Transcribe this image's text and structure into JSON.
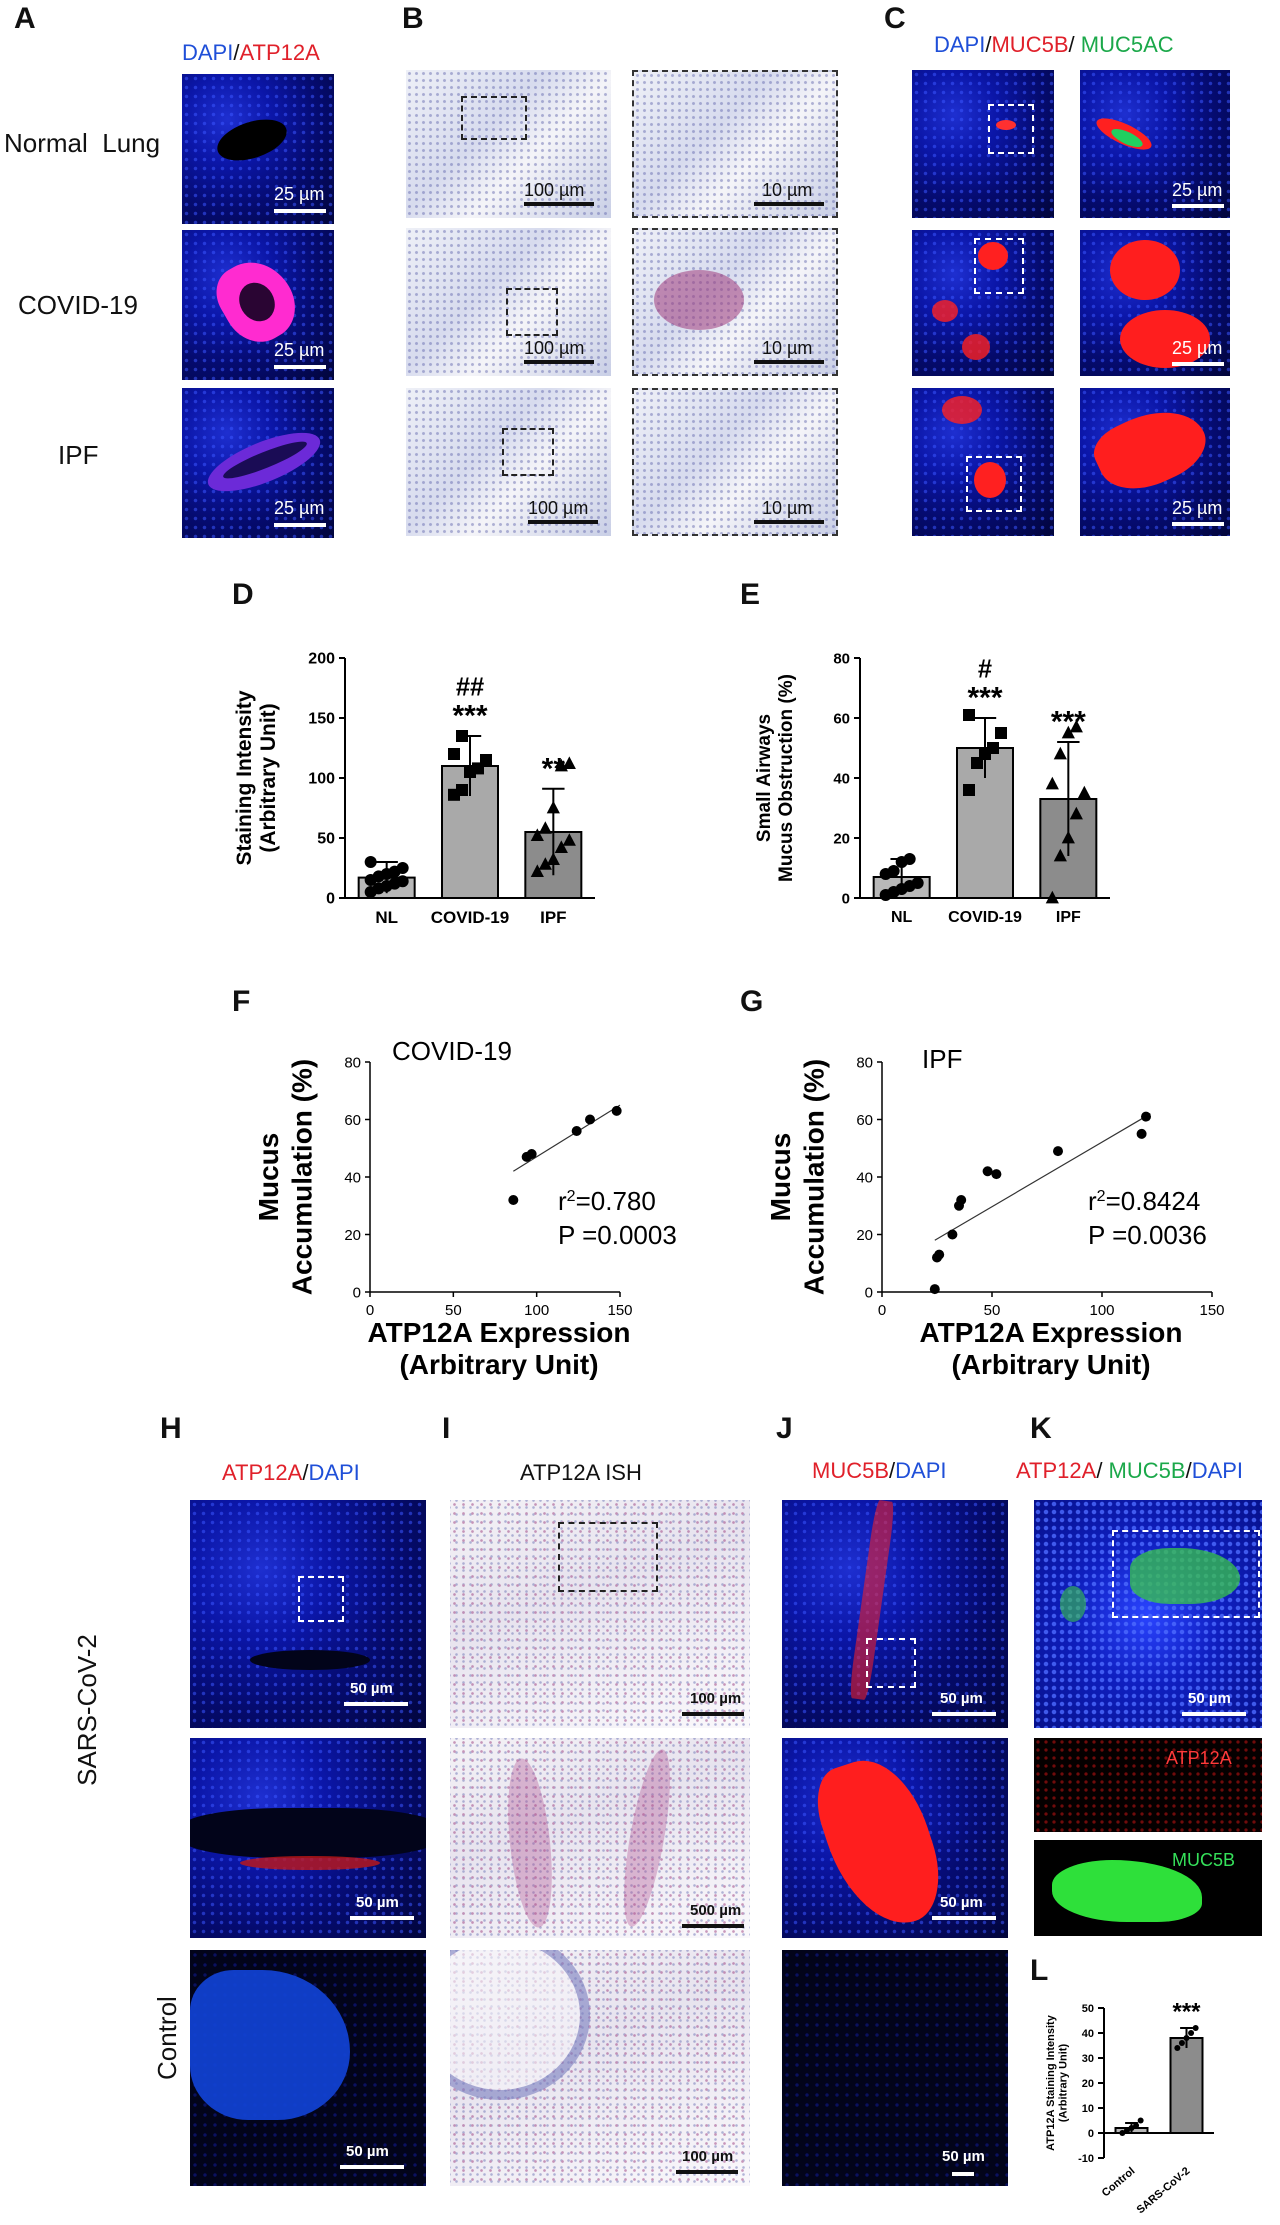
{
  "panel_labels": {
    "A": "A",
    "B": "B",
    "C": "C",
    "D": "D",
    "E": "E",
    "F": "F",
    "G": "G",
    "H": "H",
    "I": "I",
    "J": "J",
    "K": "K",
    "L": "L"
  },
  "panelA": {
    "header_dapi": "DAPI",
    "header_sep": "/",
    "header_atp": "ATP12A",
    "rows": [
      "Normal  Lung",
      "COVID-19",
      "IPF"
    ],
    "scale": "25 µm"
  },
  "panelB": {
    "scale_left": "100 µm",
    "scale_right": "10 µm"
  },
  "panelC": {
    "header_dapi": "DAPI",
    "sep1": "/",
    "header_muc5b": "MUC5B",
    "sep2": "/",
    "header_muc5ac": " MUC5AC",
    "scale": "25 µm"
  },
  "panelH": {
    "header_atp": "ATP12A",
    "sep": "/",
    "header_dapi": "DAPI",
    "row_sars": "SARS-CoV-2",
    "row_control": "Control",
    "scale": "50 µm"
  },
  "panelI": {
    "header": "ATP12A ISH",
    "scale1": "100 µm",
    "scale2": "500 µm",
    "scale3": "100 µm"
  },
  "panelJ": {
    "header_muc": "MUC5B",
    "sep": "/",
    "header_dapi": "DAPI",
    "scale": "50 µm"
  },
  "panelK": {
    "header_atp": "ATP12A",
    "sep1": "/ ",
    "header_muc": "MUC5B",
    "sep2": "/",
    "header_dapi": "DAPI",
    "scale": "50 µm",
    "label_atp": "ATP12A",
    "label_muc": "MUC5B"
  },
  "chart_data": [
    {
      "id": "D",
      "type": "bar",
      "ylabel": "Staining Intensity\n(Arbitrary Unit)",
      "ylim": [
        0,
        200
      ],
      "yticks": [
        0,
        50,
        100,
        150,
        200
      ],
      "categories": [
        "NL",
        "COVID-19",
        "IPF"
      ],
      "values": [
        17,
        110,
        55
      ],
      "errors": [
        13,
        25,
        36
      ],
      "markers": [
        "circle",
        "square",
        "triangle"
      ],
      "points": [
        [
          5,
          8,
          10,
          12,
          14,
          15,
          18,
          20,
          22,
          25,
          30
        ],
        [
          86,
          90,
          105,
          108,
          115,
          120,
          135
        ],
        [
          22,
          28,
          32,
          42,
          48,
          52,
          58,
          75,
          110,
          112
        ]
      ],
      "annotations": [
        [
          "",
          ""
        ],
        [
          "##",
          "***"
        ],
        [
          "",
          "**"
        ]
      ],
      "bar_colors": [
        "#b8b8b8",
        "#a9a9a9",
        "#8c8c8c"
      ]
    },
    {
      "id": "E",
      "type": "bar",
      "ylabel": "Small Airways\nMucus Obstruction (%)",
      "ylim": [
        0,
        80
      ],
      "yticks": [
        0,
        20,
        40,
        60,
        80
      ],
      "categories": [
        "NL",
        "COVID-19",
        "IPF"
      ],
      "values": [
        7,
        50,
        33
      ],
      "errors": [
        6,
        10,
        19
      ],
      "markers": [
        "circle",
        "square",
        "triangle"
      ],
      "points": [
        [
          1,
          2,
          3,
          4,
          5,
          8,
          9,
          12,
          13
        ],
        [
          36,
          45,
          48,
          50,
          55,
          61
        ],
        [
          0,
          14,
          20,
          28,
          35,
          38,
          48,
          55,
          57
        ]
      ],
      "annotations": [
        [
          "",
          ""
        ],
        [
          "#",
          "***"
        ],
        [
          "",
          "***"
        ]
      ],
      "bar_colors": [
        "#b8b8b8",
        "#a9a9a9",
        "#8c8c8c"
      ]
    },
    {
      "id": "F",
      "type": "scatter",
      "title": "COVID-19",
      "xlabel": "ATP12A Expression\n(Arbitrary Unit)",
      "ylabel": "Mucus\nAccumulation (%)",
      "xlim": [
        0,
        150
      ],
      "ylim": [
        0,
        80
      ],
      "xticks": [
        0,
        50,
        100,
        150
      ],
      "yticks": [
        0,
        20,
        40,
        60,
        80
      ],
      "x": [
        86,
        94,
        97,
        124,
        132,
        148
      ],
      "y": [
        32,
        47,
        48,
        56,
        60,
        63
      ],
      "fit": [
        [
          86,
          42
        ],
        [
          150,
          65
        ]
      ],
      "stats": [
        "r2=0.780",
        "P =0.0003"
      ]
    },
    {
      "id": "G",
      "type": "scatter",
      "title": "IPF",
      "xlabel": "ATP12A Expression\n(Arbitrary Unit)",
      "ylabel": "Mucus\nAccumulation (%)",
      "xlim": [
        0,
        150
      ],
      "ylim": [
        0,
        80
      ],
      "xticks": [
        0,
        50,
        100,
        150
      ],
      "yticks": [
        0,
        20,
        40,
        60,
        80
      ],
      "x": [
        24,
        25,
        26,
        32,
        35,
        36,
        48,
        52,
        80,
        118,
        120
      ],
      "y": [
        1,
        12,
        13,
        20,
        30,
        32,
        42,
        41,
        49,
        55,
        61
      ],
      "fit": [
        [
          24,
          18
        ],
        [
          122,
          62
        ]
      ],
      "stats": [
        "r2=0.8424",
        "P =0.0036"
      ]
    },
    {
      "id": "L",
      "type": "bar",
      "ylabel": "ATP12A Staining Intensity\n(Arbitrary Unit)",
      "ylim": [
        -10,
        50
      ],
      "yticks": [
        -10,
        0,
        10,
        20,
        30,
        40,
        50
      ],
      "categories": [
        "Control",
        "SARS-CoV-2"
      ],
      "values": [
        2,
        38
      ],
      "errors": [
        2,
        4
      ],
      "points": [
        [
          0,
          1,
          2,
          3,
          5
        ],
        [
          34,
          36,
          38,
          40,
          42
        ]
      ],
      "annotations": [
        [
          "",
          ""
        ],
        [
          "",
          "***"
        ]
      ],
      "bar_colors": [
        "#b8b8b8",
        "#8c8c8c"
      ]
    }
  ]
}
